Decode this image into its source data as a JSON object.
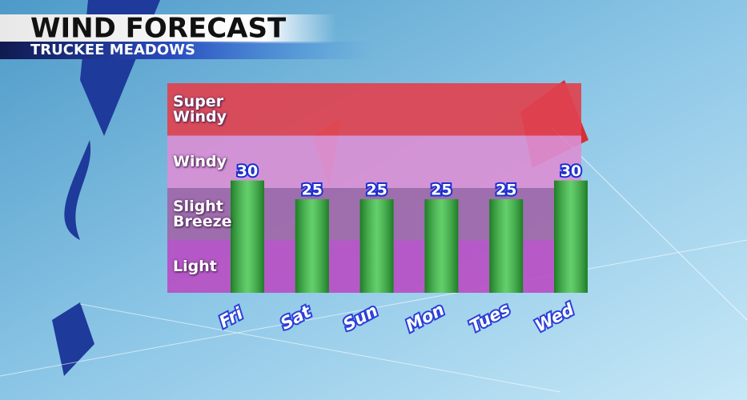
{
  "chart_data": {
    "type": "bar",
    "title": "WIND FORECAST",
    "subtitle": "TRUCKEE MEADOWS",
    "categories": [
      "Fri",
      "Sat",
      "Sun",
      "Mon",
      "Tues",
      "Wed"
    ],
    "values": [
      30,
      25,
      25,
      25,
      25,
      30
    ],
    "color": "#2fbf3a",
    "ylim": [
      0,
      56
    ],
    "bands": [
      {
        "label": "Light",
        "color": "#b84fc4"
      },
      {
        "label": "Slight Breeze",
        "color": "#a066a8"
      },
      {
        "label": "Windy",
        "color": "#d98fd4"
      },
      {
        "label": "Super Windy",
        "color": "#e0424f"
      }
    ]
  }
}
